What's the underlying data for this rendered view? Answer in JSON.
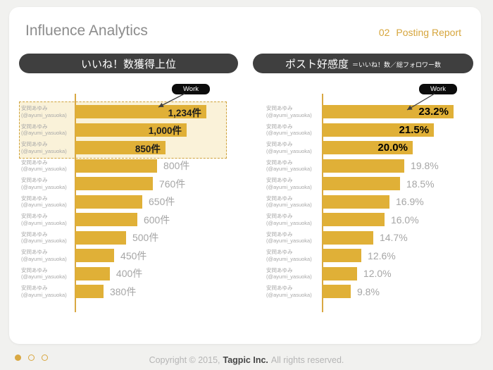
{
  "page": {
    "title": "Influence Analytics",
    "tag": {
      "number": "02",
      "label": "Posting Report"
    },
    "footer": {
      "prefix": "Copyright © 2015,",
      "company": "Tagpic Inc.",
      "suffix": "All rights reserved."
    },
    "pager": {
      "total": 3,
      "active_index": 0
    }
  },
  "colors": {
    "accent_gold": "#D9A843",
    "bar_gold": "#E0B037",
    "header_dark": "#3F3F3F",
    "highlight_bg": "#FAF2D9",
    "highlight_border": "#CFA23B",
    "muted_text": "#A6A6A6",
    "title_text": "#8C8C8C",
    "badge_black": "#0C0C0C"
  },
  "chart_data": [
    {
      "type": "bar",
      "orientation": "horizontal",
      "title": "いいね！数獲得上位",
      "subtitle": "",
      "annotation_label": "Work",
      "value_suffix": "件",
      "emphasized_top_rows": 3,
      "highlight_box_rows": 3,
      "rows": [
        {
          "name": "安岡あゆみ",
          "handle": "(@ayumi_yasuoka)",
          "value": 1234,
          "label": "1,234件"
        },
        {
          "name": "安岡あゆみ",
          "handle": "(@ayumi_yasuoka)",
          "value": 1000,
          "label": "1,000件"
        },
        {
          "name": "安岡あゆみ",
          "handle": "(@ayumi_yasuoka)",
          "value": 850,
          "label": "850件"
        },
        {
          "name": "安岡あゆみ",
          "handle": "(@ayumi_yasuoka)",
          "value": 800,
          "label": "800件"
        },
        {
          "name": "安岡あゆみ",
          "handle": "(@ayumi_yasuoka)",
          "value": 760,
          "label": "760件"
        },
        {
          "name": "安岡あゆみ",
          "handle": "(@ayumi_yasuoka)",
          "value": 650,
          "label": "650件"
        },
        {
          "name": "安岡あゆみ",
          "handle": "(@ayumi_yasuoka)",
          "value": 600,
          "label": "600件"
        },
        {
          "name": "安岡あゆみ",
          "handle": "(@ayumi_yasuoka)",
          "value": 500,
          "label": "500件"
        },
        {
          "name": "安岡あゆみ",
          "handle": "(@ayumi_yasuoka)",
          "value": 450,
          "label": "450件"
        },
        {
          "name": "安岡あゆみ",
          "handle": "(@ayumi_yasuoka)",
          "value": 400,
          "label": "400件"
        },
        {
          "name": "安岡あゆみ",
          "handle": "(@ayumi_yasuoka)",
          "value": 380,
          "label": "380件"
        }
      ],
      "layout": {
        "legend": "none",
        "axis_tick_labels": "hidden",
        "relative_lengths": [
          1,
          0.85,
          0.688,
          0.624,
          0.591,
          0.511,
          0.473,
          0.387,
          0.296,
          0.263,
          0.215
        ]
      }
    },
    {
      "type": "bar",
      "orientation": "horizontal",
      "title": "ポスト好感度",
      "subtitle": "＝いいね！数／総フォロワー数",
      "annotation_label": "Work",
      "value_suffix": "%",
      "emphasized_top_rows": 3,
      "highlight_box_rows": 0,
      "rows": [
        {
          "name": "安岡あゆみ",
          "handle": "(@ayumi_yasuoka)",
          "value": 23.2,
          "label": "23.2%"
        },
        {
          "name": "安岡あゆみ",
          "handle": "(@ayumi_yasuoka)",
          "value": 21.5,
          "label": "21.5%"
        },
        {
          "name": "安岡あゆみ",
          "handle": "(@ayumi_yasuoka)",
          "value": 20.0,
          "label": "20.0%"
        },
        {
          "name": "安岡あゆみ",
          "handle": "(@ayumi_yasuoka)",
          "value": 19.8,
          "label": "19.8%"
        },
        {
          "name": "安岡あゆみ",
          "handle": "(@ayumi_yasuoka)",
          "value": 18.5,
          "label": "18.5%"
        },
        {
          "name": "安岡あゆみ",
          "handle": "(@ayumi_yasuoka)",
          "value": 16.9,
          "label": "16.9%"
        },
        {
          "name": "安岡あゆみ",
          "handle": "(@ayumi_yasuoka)",
          "value": 16.0,
          "label": "16.0%"
        },
        {
          "name": "安岡あゆみ",
          "handle": "(@ayumi_yasuoka)",
          "value": 14.7,
          "label": "14.7%"
        },
        {
          "name": "安岡あゆみ",
          "handle": "(@ayumi_yasuoka)",
          "value": 12.6,
          "label": "12.6%"
        },
        {
          "name": "安岡あゆみ",
          "handle": "(@ayumi_yasuoka)",
          "value": 12.0,
          "label": "12.0%"
        },
        {
          "name": "安岡あゆみ",
          "handle": "(@ayumi_yasuoka)",
          "value": 9.8,
          "label": "9.8%"
        }
      ],
      "layout": {
        "legend": "none",
        "axis_tick_labels": "hidden",
        "relative_lengths": [
          1,
          0.85,
          0.688,
          0.624,
          0.591,
          0.511,
          0.473,
          0.387,
          0.296,
          0.263,
          0.215
        ]
      }
    }
  ]
}
